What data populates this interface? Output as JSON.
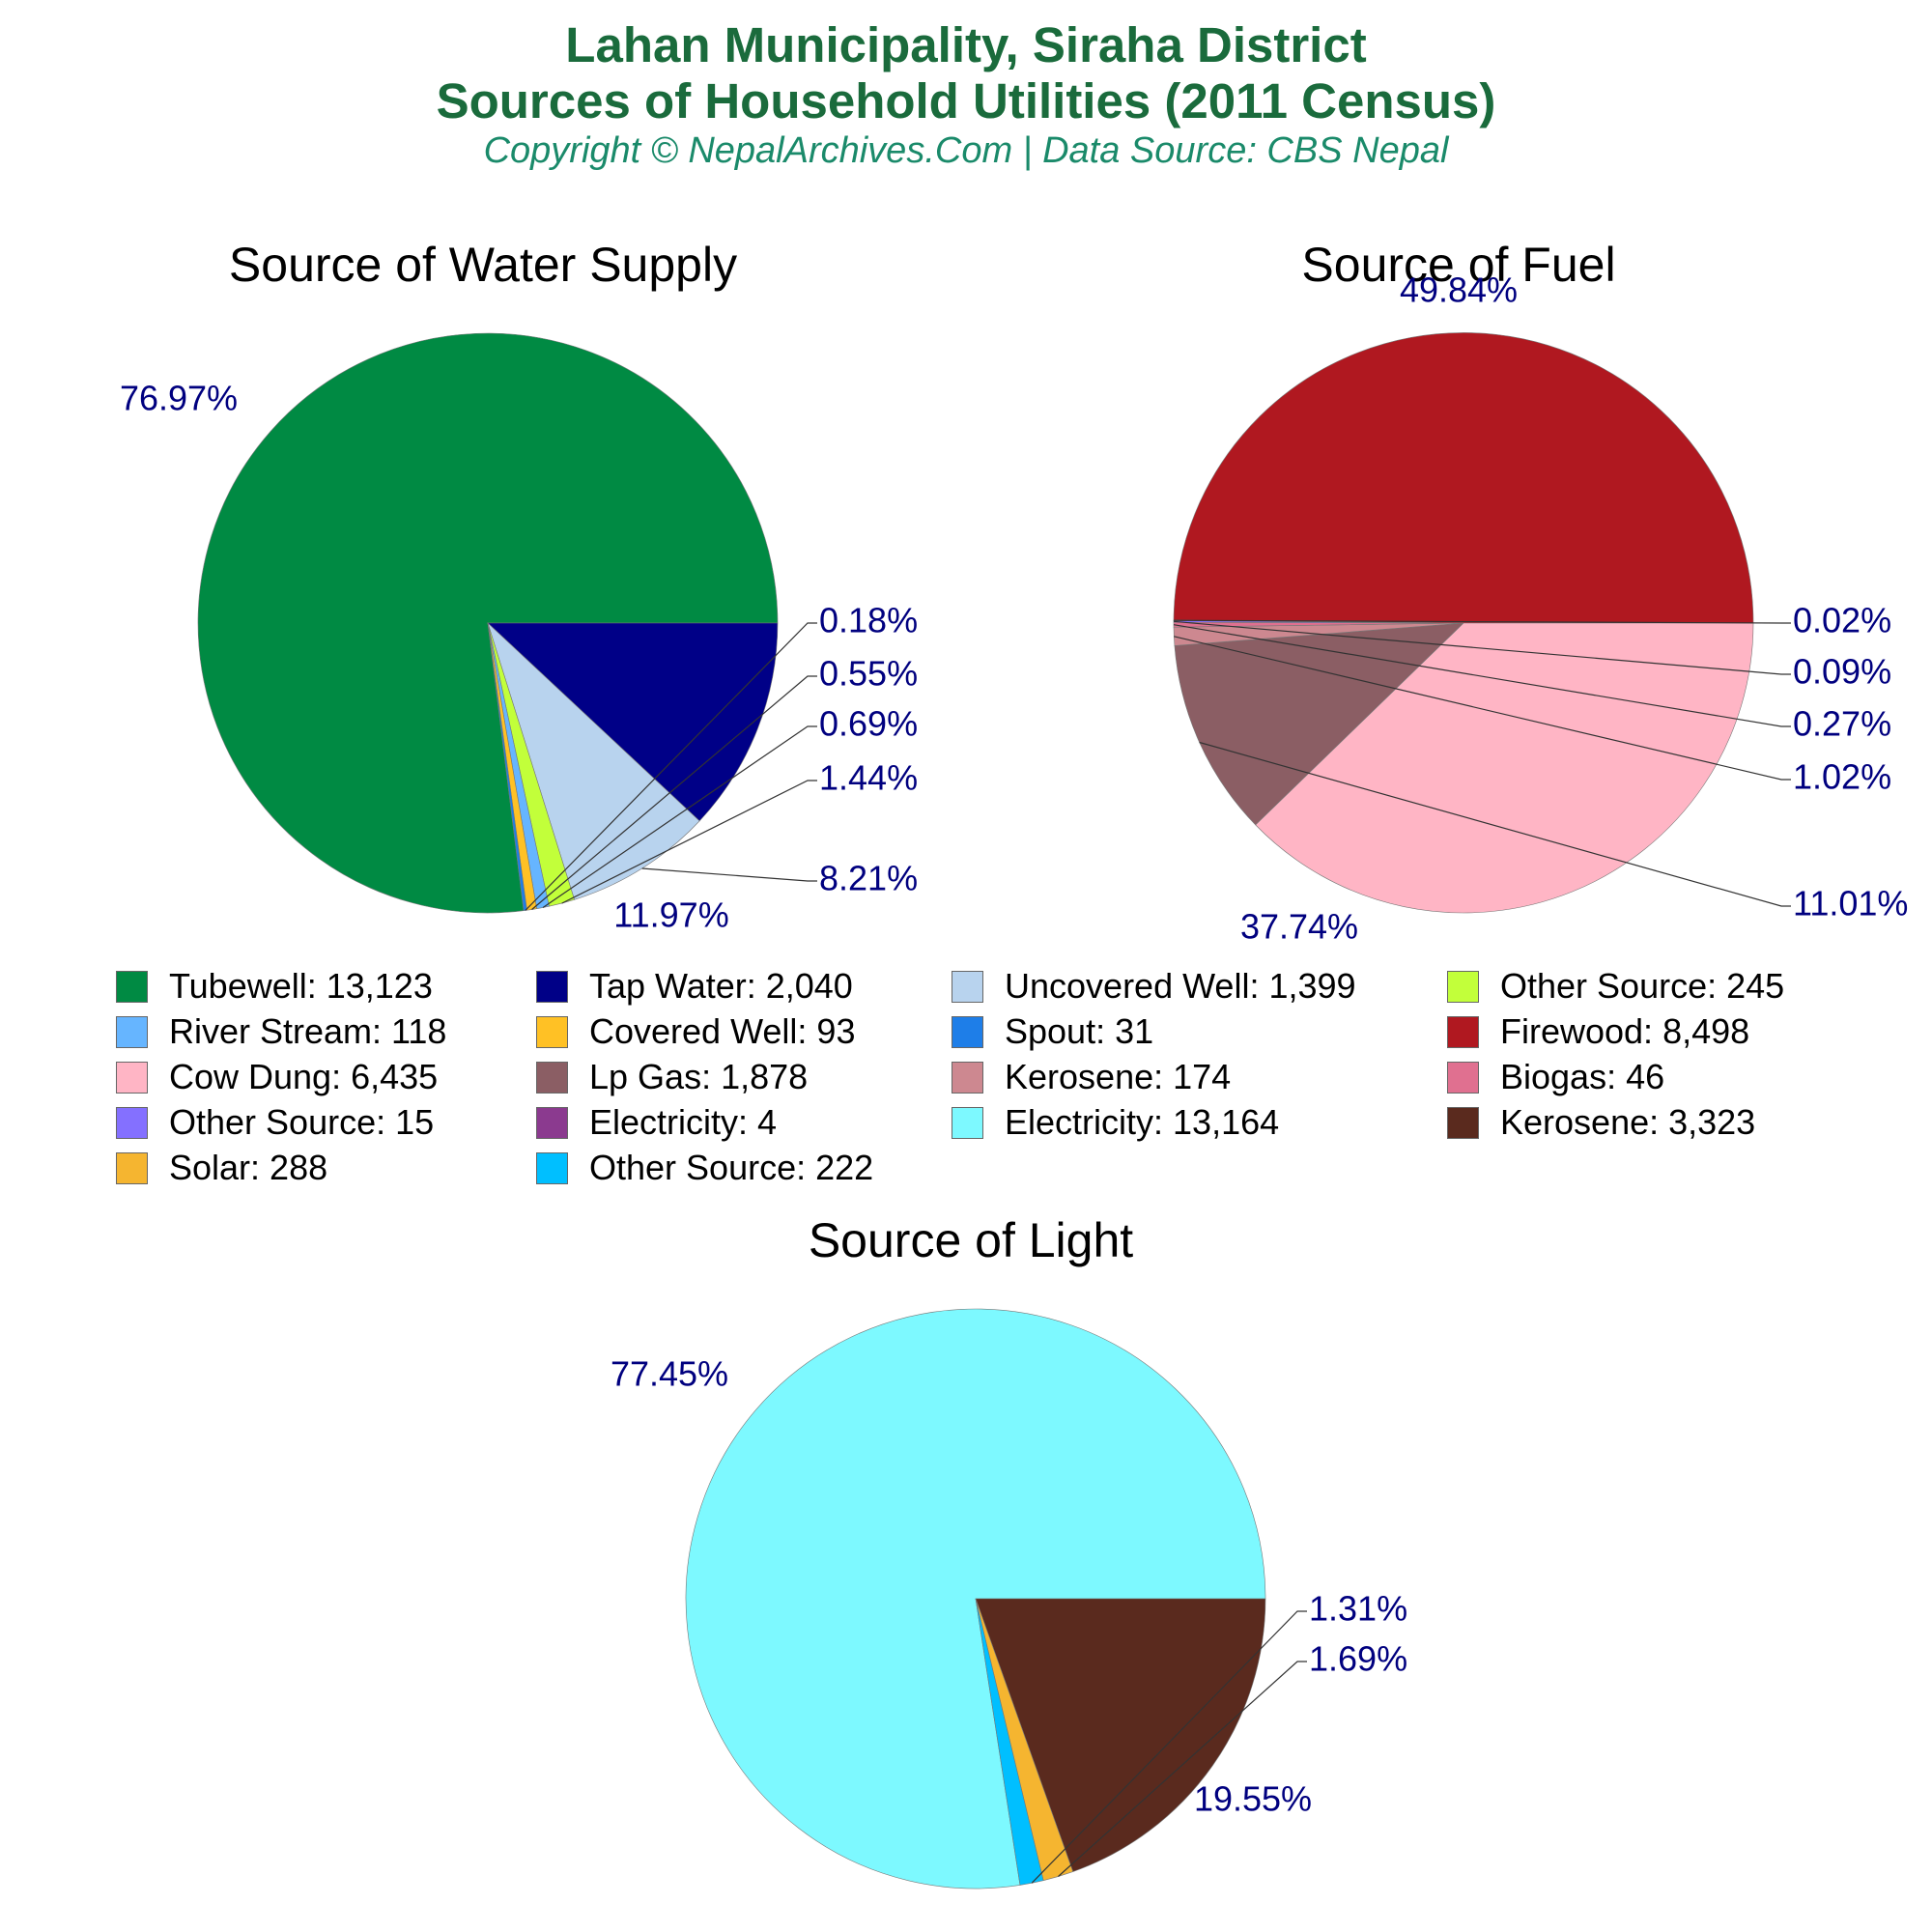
{
  "header": {
    "title_line1": "Lahan Municipality, Siraha District",
    "title_line2": "Sources of Household Utilities (2011 Census)",
    "subtitle": "Copyright © NepalArchives.Com | Data Source: CBS Nepal"
  },
  "chart_data": [
    {
      "type": "pie",
      "title": "Source of Water Supply",
      "slices": [
        {
          "label": "Tubewell",
          "value": 13123,
          "percent_label": "76.97%",
          "color": "#008a43"
        },
        {
          "label": "Tap Water",
          "value": 2040,
          "percent_label": "11.97%",
          "color": "#000087"
        },
        {
          "label": "Uncovered Well",
          "value": 1399,
          "percent_label": "8.21%",
          "color": "#b8d3ee"
        },
        {
          "label": "Other Source",
          "value": 245,
          "percent_label": "1.44%",
          "color": "#c2ff3a"
        },
        {
          "label": "River Stream",
          "value": 118,
          "percent_label": "0.69%",
          "color": "#66b5ff"
        },
        {
          "label": "Covered Well",
          "value": 93,
          "percent_label": "0.55%",
          "color": "#ffc125"
        },
        {
          "label": "Spout",
          "value": 31,
          "percent_label": "0.18%",
          "color": "#1e7ee8"
        }
      ]
    },
    {
      "type": "pie",
      "title": "Source of Fuel",
      "slices": [
        {
          "label": "Firewood",
          "value": 8498,
          "percent_label": "49.84%",
          "color": "#b01820"
        },
        {
          "label": "Cow Dung",
          "value": 6435,
          "percent_label": "37.74%",
          "color": "#ffb5c5"
        },
        {
          "label": "Lp Gas",
          "value": 1878,
          "percent_label": "11.01%",
          "color": "#8b5e64"
        },
        {
          "label": "Kerosene",
          "value": 174,
          "percent_label": "1.02%",
          "color": "#cd8890"
        },
        {
          "label": "Biogas",
          "value": 46,
          "percent_label": "0.27%",
          "color": "#e07090"
        },
        {
          "label": "Other Source",
          "value": 15,
          "percent_label": "0.09%",
          "color": "#8470ff"
        },
        {
          "label": "Electricity",
          "value": 4,
          "percent_label": "0.02%",
          "color": "#8b3a8f"
        }
      ]
    },
    {
      "type": "pie",
      "title": "Source of Light",
      "slices": [
        {
          "label": "Electricity",
          "value": 13164,
          "percent_label": "77.45%",
          "color": "#7df9ff"
        },
        {
          "label": "Kerosene",
          "value": 3323,
          "percent_label": "19.55%",
          "color": "#5a2a1e"
        },
        {
          "label": "Solar",
          "value": 288,
          "percent_label": "1.69%",
          "color": "#f5b530"
        },
        {
          "label": "Other Source",
          "value": 222,
          "percent_label": "1.31%",
          "color": "#00bfff"
        }
      ]
    }
  ],
  "legend": [
    {
      "text": "Tubewell: 13,123",
      "color": "#008a43"
    },
    {
      "text": "Tap Water: 2,040",
      "color": "#000087"
    },
    {
      "text": "Uncovered Well: 1,399",
      "color": "#b8d3ee"
    },
    {
      "text": "Other Source: 245",
      "color": "#c2ff3a"
    },
    {
      "text": "River Stream: 118",
      "color": "#66b5ff"
    },
    {
      "text": "Covered Well: 93",
      "color": "#ffc125"
    },
    {
      "text": "Spout: 31",
      "color": "#1e7ee8"
    },
    {
      "text": "Firewood: 8,498",
      "color": "#b01820"
    },
    {
      "text": "Cow Dung: 6,435",
      "color": "#ffb5c5"
    },
    {
      "text": "Lp Gas: 1,878",
      "color": "#8b5e64"
    },
    {
      "text": "Kerosene: 174",
      "color": "#cd8890"
    },
    {
      "text": "Biogas: 46",
      "color": "#e07090"
    },
    {
      "text": "Other Source: 15",
      "color": "#8470ff"
    },
    {
      "text": "Electricity: 4",
      "color": "#8b3a8f"
    },
    {
      "text": "Electricity: 13,164",
      "color": "#7df9ff"
    },
    {
      "text": "Kerosene: 3,323",
      "color": "#5a2a1e"
    },
    {
      "text": "Solar: 288",
      "color": "#f5b530"
    },
    {
      "text": "Other Source: 222",
      "color": "#00bfff"
    }
  ],
  "colors": {
    "title": "#1a6b3c",
    "subtitle": "#1a8a6a",
    "percent_label": "#00007f"
  }
}
